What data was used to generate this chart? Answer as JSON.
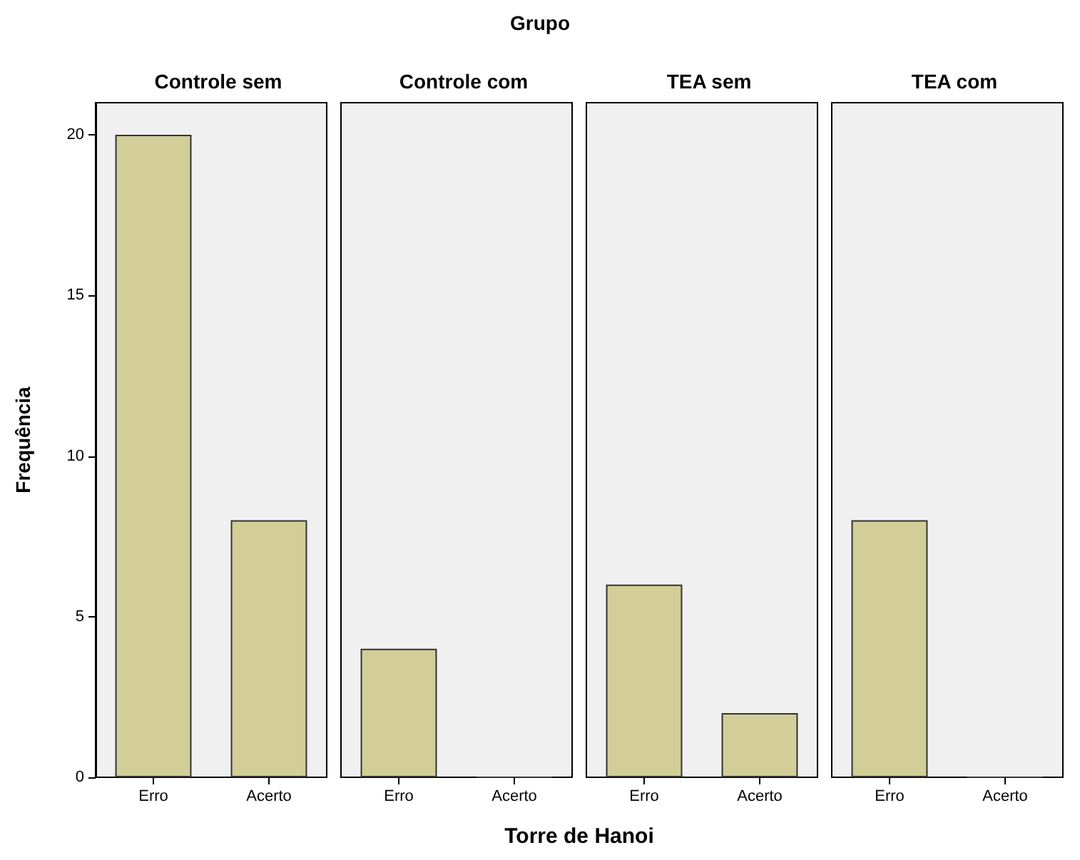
{
  "chart_data": [
    {
      "type": "bar",
      "title": "Controle sem",
      "annotations": [
        "Grupo",
        "Torre de Hanoi"
      ],
      "ylabel": "Frequência",
      "categories": [
        "Erro",
        "Acerto"
      ],
      "values": [
        20,
        8
      ],
      "color": "#d3ce97",
      "ylim": [
        0,
        21
      ],
      "yticks": [
        0,
        5,
        10,
        15,
        20
      ]
    },
    {
      "type": "bar",
      "title": "Controle com",
      "categories": [
        "Erro",
        "Acerto"
      ],
      "values": [
        4,
        0
      ],
      "color": "#d3ce97",
      "ylim": [
        0,
        21
      ],
      "yticks": [
        0,
        5,
        10,
        15,
        20
      ],
      "tick_labels": "x"
    },
    {
      "type": "bar",
      "title": "TEA sem",
      "categories": [
        "Erro",
        "Acerto"
      ],
      "values": [
        6,
        2
      ],
      "color": "#d3ce97",
      "ylim": [
        0,
        21
      ],
      "yticks": [
        0,
        5,
        10,
        15,
        20
      ],
      "tick_labels": "x"
    },
    {
      "type": "bar",
      "title": "TEA com",
      "categories": [
        "Erro",
        "Acerto"
      ],
      "values": [
        8,
        0
      ],
      "color": "#d3ce97",
      "ylim": [
        0,
        21
      ],
      "yticks": [
        0,
        5,
        10,
        15,
        20
      ],
      "tick_labels": "x"
    }
  ]
}
